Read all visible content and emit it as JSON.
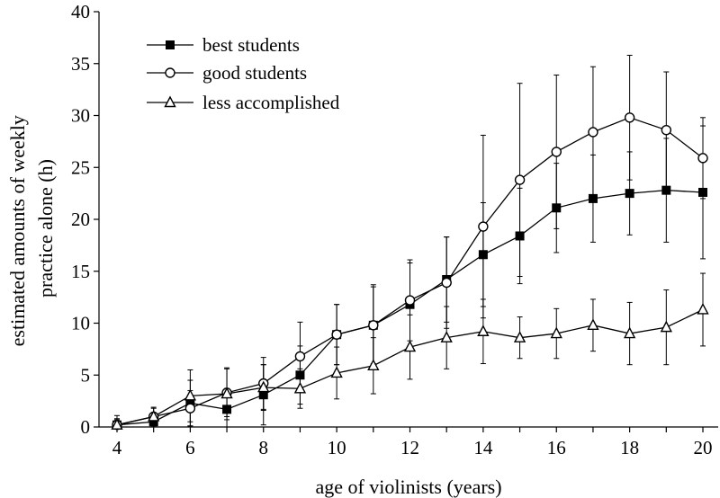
{
  "chart_data": {
    "type": "line",
    "xlabel": "age of violinists (years)",
    "ylabel": "estimated amounts of weekly practice alone (h)",
    "ylabel_lines": [
      "estimated amounts of weekly",
      "practice alone (h)"
    ],
    "xlim": [
      4,
      20.2
    ],
    "ylim": [
      0,
      40
    ],
    "xticks": [
      4,
      6,
      8,
      10,
      12,
      14,
      16,
      18,
      20
    ],
    "yticks": [
      0,
      5,
      10,
      15,
      20,
      25,
      30,
      35,
      40
    ],
    "grid": false,
    "legend_position": "top-left",
    "x": [
      4,
      5,
      6,
      7,
      8,
      9,
      10,
      11,
      12,
      13,
      14,
      15,
      16,
      17,
      18,
      19,
      20
    ],
    "series": [
      {
        "name": "best students",
        "marker": "filled-square",
        "values": [
          0.2,
          0.5,
          2.3,
          1.7,
          3.1,
          5.0,
          8.9,
          9.8,
          11.8,
          14.2,
          16.6,
          18.4,
          21.1,
          22.0,
          22.5,
          22.8,
          22.6
        ],
        "error": [
          0.6,
          0.8,
          2.2,
          2.0,
          2.9,
          2.8,
          2.9,
          3.7,
          4.0,
          4.1,
          5.0,
          4.6,
          4.3,
          4.2,
          4.0,
          5.0,
          6.4
        ]
      },
      {
        "name": "good students",
        "marker": "open-circle",
        "values": [
          0.2,
          1.0,
          1.8,
          3.3,
          4.2,
          6.8,
          8.9,
          9.8,
          12.2,
          13.9,
          19.3,
          23.8,
          26.5,
          28.4,
          29.8,
          28.6,
          25.9
        ],
        "error": [
          0.5,
          0.8,
          1.7,
          2.3,
          2.5,
          3.3,
          2.9,
          3.9,
          3.9,
          4.4,
          8.8,
          9.3,
          7.4,
          6.3,
          6.0,
          5.6,
          3.9
        ]
      },
      {
        "name": "less accomplished",
        "marker": "open-triangle",
        "values": [
          0.2,
          1.0,
          3.0,
          3.2,
          3.8,
          3.7,
          5.2,
          5.9,
          7.7,
          8.6,
          9.2,
          8.6,
          9.0,
          9.8,
          9.0,
          9.6,
          11.3
        ],
        "error": [
          0.9,
          0.9,
          2.5,
          2.5,
          2.2,
          1.9,
          2.5,
          2.7,
          3.1,
          3.0,
          3.1,
          2.0,
          2.4,
          2.5,
          3.0,
          3.6,
          3.5
        ]
      }
    ]
  }
}
